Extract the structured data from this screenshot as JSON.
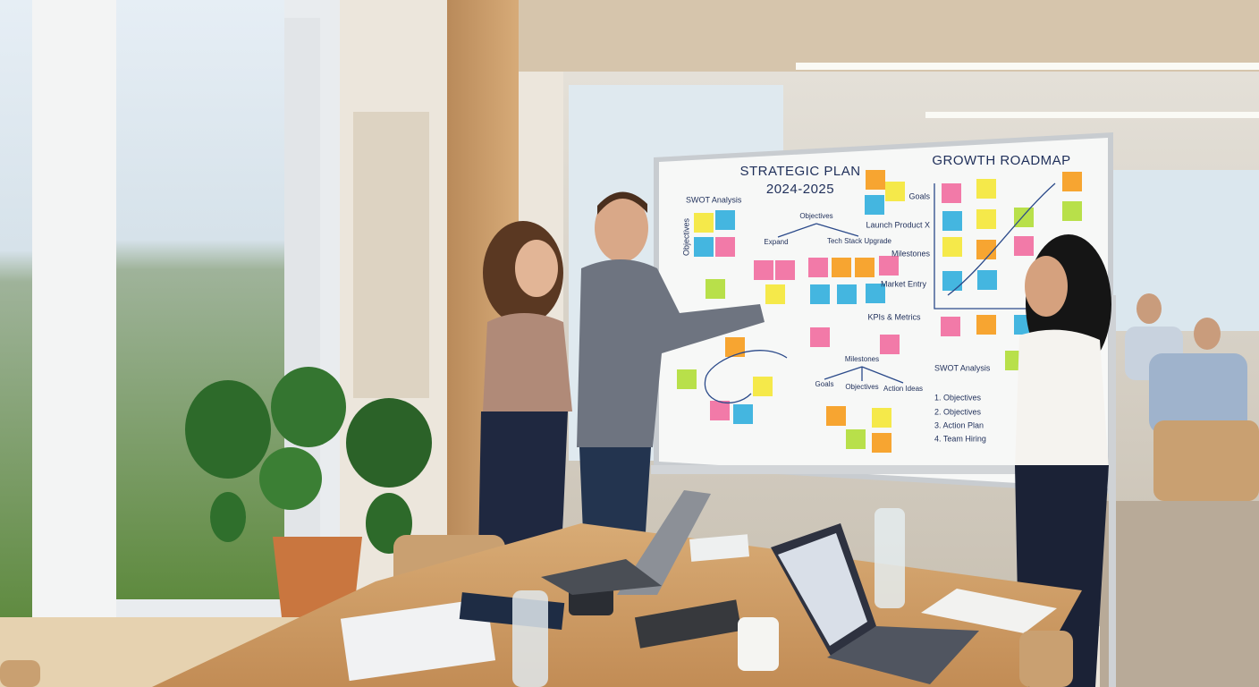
{
  "whiteboard": {
    "title": "STRATEGIC PLAN",
    "years": "2024-2025",
    "roadmap_title": "GROWTH ROADMAP",
    "swot_label": "SWOT Analysis",
    "objectives_label": "Objectives",
    "kpi_label": "KPIs & Metrics",
    "nodes": [
      "Objectives",
      "Expand",
      "Tech Stack Upgrade",
      "Milestones",
      "Goals",
      "Objectives",
      "Action Ideas"
    ],
    "roadmap_labels": [
      "Goals",
      "Launch Product X",
      "Milestones",
      "Market Entry"
    ],
    "list_title": "SWOT Analysis",
    "list": [
      "1. Objectives",
      "2. Objectives",
      "3. Action Plan",
      "4. Team Hiring"
    ]
  }
}
